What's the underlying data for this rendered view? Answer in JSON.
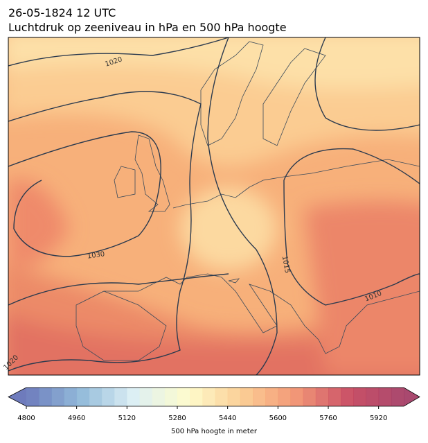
{
  "header": {
    "date": "26-05-1824 12 UTC",
    "title": "Luchtdruk op zeeniveau in hPa en 500 hPa hoogte"
  },
  "map": {
    "isobar_labels": [
      1020,
      1030,
      1015,
      1010,
      1020
    ]
  },
  "colorbar": {
    "clim": [
      4800,
      6000
    ],
    "step": 40,
    "cticks": [
      4800,
      4960,
      5120,
      5280,
      5440,
      5600,
      5760,
      5920
    ],
    "colormap": [
      "#5e6db5",
      "#87b3d6",
      "#d9eef3",
      "#fefbc7",
      "#fbc98a",
      "#f18c68",
      "#c43e57",
      "#a0355f"
    ],
    "label": "500 hPa hoogte in meter"
  }
}
